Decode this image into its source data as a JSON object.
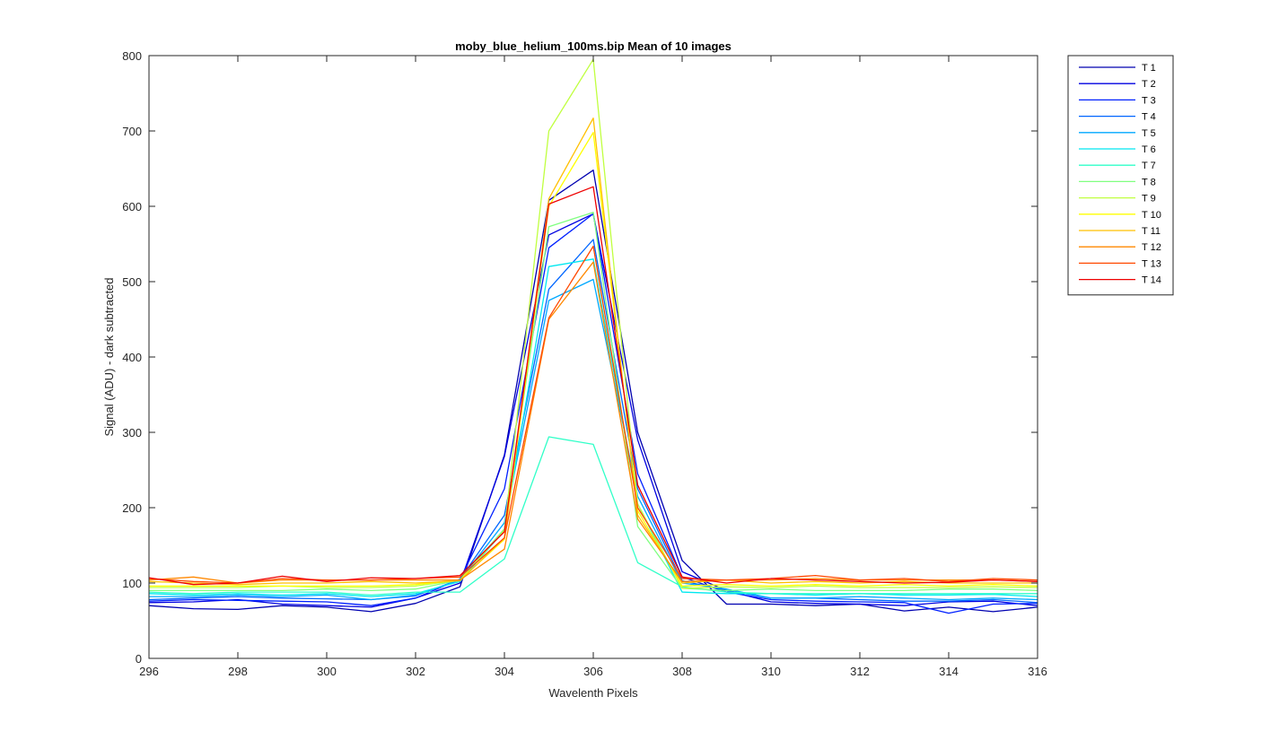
{
  "chart_data": {
    "type": "line",
    "title": "moby_blue_helium_100ms.bip  Mean of 10 images",
    "xlabel": "Wavelenth Pixels",
    "ylabel": "Signal (ADU) - dark subtracted",
    "xlim": [
      296,
      316
    ],
    "ylim": [
      0,
      800
    ],
    "xticks": [
      296,
      298,
      300,
      302,
      304,
      306,
      308,
      310,
      312,
      314,
      316
    ],
    "yticks": [
      0,
      100,
      200,
      300,
      400,
      500,
      600,
      700,
      800
    ],
    "grid": false,
    "legend_position": "outside-top-right",
    "x": [
      296,
      297,
      298,
      299,
      300,
      301,
      302,
      303,
      304,
      305,
      306,
      307,
      308,
      309,
      310,
      311,
      312,
      313,
      314,
      315,
      316
    ],
    "series": [
      {
        "name": "T 1",
        "color": "#0000b0",
        "values": [
          70,
          66,
          65,
          70,
          68,
          62,
          73,
          95,
          270,
          608,
          648,
          300,
          130,
          72,
          72,
          70,
          72,
          63,
          68,
          62,
          68
        ]
      },
      {
        "name": "T 2",
        "color": "#0000e0",
        "values": [
          74,
          75,
          78,
          72,
          70,
          68,
          80,
          100,
          268,
          562,
          590,
          290,
          115,
          90,
          75,
          73,
          72,
          70,
          75,
          76,
          70
        ]
      },
      {
        "name": "T 3",
        "color": "#0020ff",
        "values": [
          76,
          78,
          77,
          76,
          75,
          70,
          80,
          105,
          225,
          545,
          590,
          245,
          108,
          88,
          78,
          76,
          75,
          74,
          60,
          72,
          73
        ]
      },
      {
        "name": "T 4",
        "color": "#0066ff",
        "values": [
          78,
          80,
          82,
          80,
          79,
          78,
          83,
          105,
          190,
          490,
          556,
          225,
          103,
          90,
          80,
          80,
          78,
          76,
          76,
          78,
          74
        ]
      },
      {
        "name": "T 5",
        "color": "#00a8ff",
        "values": [
          82,
          82,
          84,
          82,
          84,
          78,
          84,
          104,
          180,
          475,
          503,
          215,
          100,
          92,
          80,
          80,
          82,
          80,
          78,
          80,
          78
        ]
      },
      {
        "name": "T 6",
        "color": "#00e8f0",
        "values": [
          86,
          84,
          86,
          84,
          86,
          82,
          86,
          102,
          170,
          520,
          530,
          205,
          88,
          86,
          86,
          84,
          86,
          84,
          84,
          85,
          82
        ]
      },
      {
        "name": "T 7",
        "color": "#30ffc8",
        "values": [
          88,
          86,
          88,
          88,
          88,
          84,
          88,
          88,
          132,
          294,
          284,
          127,
          95,
          88,
          86,
          86,
          86,
          86,
          86,
          86,
          86
        ]
      },
      {
        "name": "T 8",
        "color": "#80ff80",
        "values": [
          90,
          90,
          90,
          90,
          92,
          90,
          92,
          104,
          172,
          573,
          592,
          175,
          93,
          90,
          92,
          90,
          90,
          90,
          92,
          92,
          90
        ]
      },
      {
        "name": "T 9",
        "color": "#c0ff40",
        "values": [
          94,
          94,
          94,
          96,
          94,
          94,
          96,
          104,
          170,
          700,
          795,
          205,
          93,
          95,
          94,
          96,
          94,
          94,
          94,
          95,
          94
        ]
      },
      {
        "name": "T 10",
        "color": "#ffff00",
        "values": [
          96,
          96,
          96,
          96,
          96,
          96,
          98,
          104,
          158,
          600,
          698,
          196,
          96,
          98,
          96,
          98,
          96,
          98,
          96,
          98,
          96
        ]
      },
      {
        "name": "T 11",
        "color": "#ffc000",
        "values": [
          102,
          100,
          98,
          100,
          100,
          102,
          100,
          103,
          160,
          610,
          717,
          190,
          100,
          104,
          100,
          102,
          100,
          102,
          100,
          100,
          100
        ]
      },
      {
        "name": "T 12",
        "color": "#ff8800",
        "values": [
          104,
          108,
          100,
          104,
          104,
          104,
          104,
          104,
          145,
          450,
          526,
          185,
          102,
          104,
          104,
          106,
          104,
          104,
          104,
          104,
          102
        ]
      },
      {
        "name": "T 13",
        "color": "#ff4800",
        "values": [
          106,
          102,
          100,
          106,
          104,
          104,
          106,
          108,
          160,
          452,
          547,
          200,
          106,
          104,
          106,
          110,
          104,
          106,
          102,
          106,
          104
        ]
      },
      {
        "name": "T 14",
        "color": "#ee0000",
        "values": [
          107,
          98,
          100,
          109,
          102,
          107,
          106,
          110,
          168,
          603,
          626,
          230,
          108,
          100,
          106,
          104,
          102,
          100,
          101,
          104,
          102
        ]
      }
    ]
  }
}
